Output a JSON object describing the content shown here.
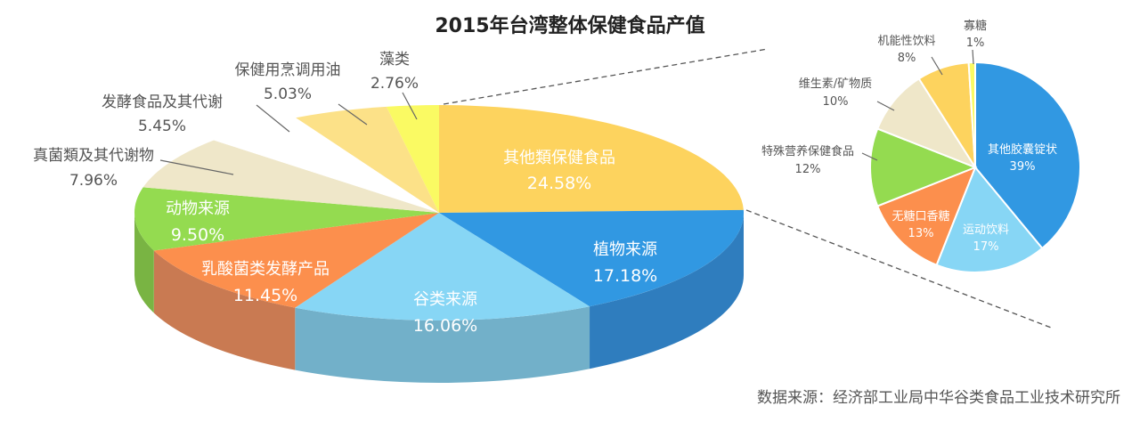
{
  "chart_data": [
    {
      "type": "pie",
      "title": "2015年台湾整体保健食品产值",
      "slices": [
        {
          "label": "其他類保健食品",
          "value_text": "24.58%",
          "value": 24.58,
          "color": "#FDD35E",
          "side": "#E4BB46"
        },
        {
          "label": "植物来源",
          "value_text": "17.18%",
          "value": 17.18,
          "color": "#3198E2",
          "side": "#2F7DBE"
        },
        {
          "label": "谷类来源",
          "value_text": "16.06%",
          "value": 16.06,
          "color": "#87D6F5",
          "side": "#72B0C9"
        },
        {
          "label": "乳酸菌类发酵产品",
          "value_text": "11.45%",
          "value": 11.45,
          "color": "#FC8F4D",
          "side": "#C97A52"
        },
        {
          "label": "动物来源",
          "value_text": "9.50%",
          "value": 9.5,
          "color": "#94DB50",
          "side": "#79B443"
        },
        {
          "label": "真菌類及其代谢物",
          "value_text": "7.96%",
          "value": 7.96,
          "color": "#EFE7C9",
          "side": "#D3CCAF"
        },
        {
          "label": "发酵食品及其代谢",
          "value_text": "5.45%",
          "value": 5.45,
          "color": "#FFFFFF",
          "side": "#FFFFFF"
        },
        {
          "label": "保健用烹调用油",
          "value_text": "5.03%",
          "value": 5.03,
          "color": "#FCE188",
          "side": "#E2C86E"
        },
        {
          "label": "藻类",
          "value_text": "2.76%",
          "value": 2.76,
          "color": "#FAFA63",
          "side": "#E0E04F"
        }
      ]
    },
    {
      "type": "pie",
      "title": "",
      "slices": [
        {
          "label": "其他胶囊锭状",
          "value_text": "39%",
          "value": 39,
          "color": "#3198E2"
        },
        {
          "label": "运动饮料",
          "value_text": "17%",
          "value": 17,
          "color": "#87D6F5"
        },
        {
          "label": "无糖口香糖",
          "value_text": "13%",
          "value": 13,
          "color": "#FC8F4D"
        },
        {
          "label": "特殊营养保健食品",
          "value_text": "12%",
          "value": 12,
          "color": "#94DB50"
        },
        {
          "label": "维生素/矿物质",
          "value_text": "10%",
          "value": 10,
          "color": "#EFE7C9"
        },
        {
          "label": "机能性饮料",
          "value_text": "8%",
          "value": 8,
          "color": "#FDD35E"
        },
        {
          "label": "寡糖",
          "value_text": "1%",
          "value": 1,
          "color": "#FAFA63"
        }
      ]
    }
  ],
  "source": "数据来源：经济部工业局中华谷类食品工业技术研究所"
}
